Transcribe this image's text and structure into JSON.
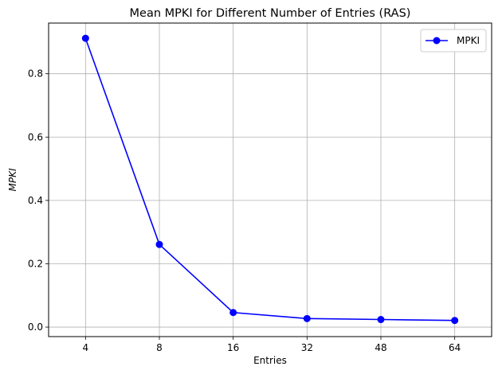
{
  "chart_data": {
    "type": "line",
    "title": "Mean MPKI for Different Number of Entries (RAS)",
    "xlabel": "Entries",
    "ylabel": "MPKI",
    "categories": [
      "4",
      "8",
      "16",
      "32",
      "48",
      "64"
    ],
    "series": [
      {
        "name": "MPKI",
        "values": [
          0.912,
          0.261,
          0.046,
          0.027,
          0.024,
          0.021
        ],
        "color": "#0000ff",
        "marker": "circle"
      }
    ],
    "ylim": [
      -0.03,
      0.96
    ],
    "yticks": [
      0.0,
      0.2,
      0.4,
      0.6,
      0.8
    ],
    "ytick_labels": [
      "0.0",
      "0.2",
      "0.4",
      "0.6",
      "0.8"
    ],
    "grid": true,
    "legend_position": "top-right",
    "grid_color": "#b0b0b0"
  }
}
